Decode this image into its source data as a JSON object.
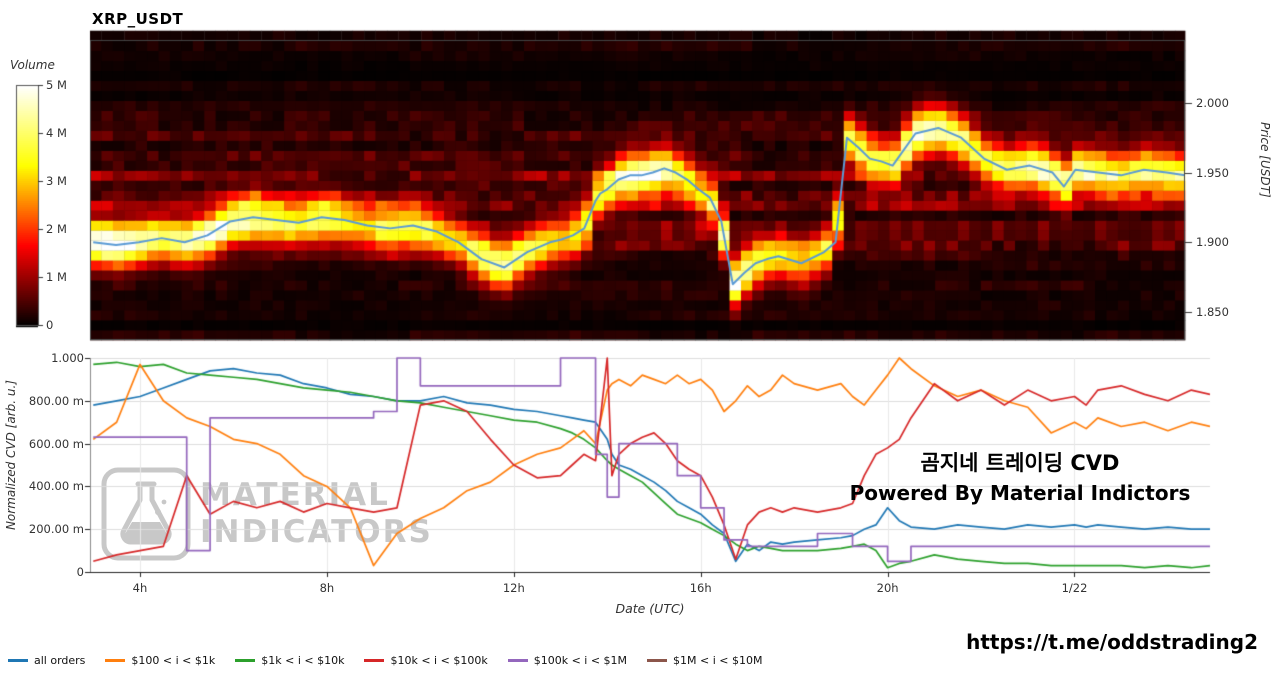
{
  "title": "XRP_USDT",
  "heatmap": {
    "colorbar": {
      "label": "Volume",
      "ticks": [
        {
          "label": "5 M",
          "m": 5
        },
        {
          "label": "4 M",
          "m": 4
        },
        {
          "label": "3 M",
          "m": 3
        },
        {
          "label": "2 M",
          "m": 2
        },
        {
          "label": "1 M",
          "m": 1
        },
        {
          "label": "0",
          "m": 0
        }
      ]
    },
    "price_axis": {
      "label": "Price [USDT]",
      "ticks": [
        {
          "label": "2.000",
          "p": 2.0
        },
        {
          "label": "1.950",
          "p": 1.95
        },
        {
          "label": "1.900",
          "p": 1.9
        },
        {
          "label": "1.850",
          "p": 1.85
        }
      ]
    }
  },
  "cvd_axes": {
    "y_label": "Normalized CVD [arb. u.]",
    "x_label": "Date (UTC)",
    "y_ticks": [
      {
        "label": "1.000",
        "v": 1.0
      },
      {
        "label": "800.00 m",
        "v": 0.8
      },
      {
        "label": "600.00 m",
        "v": 0.6
      },
      {
        "label": "400.00 m",
        "v": 0.4
      },
      {
        "label": "200.00 m",
        "v": 0.2
      },
      {
        "label": "0",
        "v": 0.0
      }
    ],
    "x_ticks": [
      {
        "label": "4h",
        "t": 4
      },
      {
        "label": "8h",
        "t": 8
      },
      {
        "label": "12h",
        "t": 12
      },
      {
        "label": "16h",
        "t": 16
      },
      {
        "label": "20h",
        "t": 20
      },
      {
        "label": "1/22",
        "t": 24
      }
    ]
  },
  "overlays": {
    "korean": "곰지네 트레이딩 CVD",
    "powered": "Powered By Material Indictors",
    "telegram": "https://t.me/oddstrading2",
    "watermark_line1": "MATERIAL",
    "watermark_line2": "INDICATORS"
  },
  "legend": [
    {
      "label": "all orders",
      "color": "#1f77b4"
    },
    {
      "label": "$100 < i < $1k",
      "color": "#ff7f0e"
    },
    {
      "label": "$1k < i < $10k",
      "color": "#2ca02c"
    },
    {
      "label": "$10k < i < $100k",
      "color": "#d62728"
    },
    {
      "label": "$100k < i < $1M",
      "color": "#9467bd"
    },
    {
      "label": "$1M < i < $10M",
      "color": "#8c564b"
    }
  ],
  "chart_data": [
    {
      "type": "heatmap",
      "title": "XRP_USDT",
      "xlabel": "Date (UTC)",
      "ylabel": "Price [USDT]",
      "volume_scale_M": [
        0,
        5
      ],
      "price_range": [
        1.83,
        2.045
      ],
      "band_sigma": 0.011,
      "price_line_color": "#5b9bd5",
      "x_hours": [
        3.0,
        3.5,
        4.0,
        4.5,
        5.0,
        5.5,
        6.0,
        6.5,
        7.0,
        7.5,
        8.0,
        8.5,
        9.0,
        9.5,
        10.0,
        10.5,
        11.0,
        11.5,
        12.0,
        12.5,
        13.0,
        13.25,
        13.5,
        13.75,
        14.0,
        14.1,
        14.25,
        14.5,
        14.75,
        15.0,
        15.25,
        15.5,
        15.75,
        16.0,
        16.25,
        16.5,
        16.75,
        17.0,
        17.25,
        17.5,
        17.75,
        18.0,
        18.5,
        19.0,
        19.25,
        19.5,
        19.75,
        20.0,
        20.25,
        20.5,
        21.0,
        21.5,
        22.0,
        22.5,
        23.0,
        23.5,
        24.0,
        24.25,
        24.5,
        25.0,
        25.5,
        26.0,
        26.5,
        26.9
      ],
      "price_line": [
        1.9,
        1.898,
        1.9,
        1.903,
        1.9,
        1.905,
        1.915,
        1.918,
        1.916,
        1.914,
        1.918,
        1.916,
        1.912,
        1.91,
        1.912,
        1.908,
        1.9,
        1.888,
        1.882,
        1.893,
        1.9,
        1.902,
        1.905,
        1.91,
        1.93,
        1.935,
        1.938,
        1.945,
        1.948,
        1.948,
        1.95,
        1.953,
        1.95,
        1.945,
        1.938,
        1.932,
        1.915,
        1.87,
        1.878,
        1.885,
        1.888,
        1.89,
        1.885,
        1.893,
        1.9,
        1.975,
        1.968,
        1.96,
        1.958,
        1.955,
        1.978,
        1.982,
        1.975,
        1.96,
        1.952,
        1.955,
        1.95,
        1.94,
        1.952,
        1.95,
        1.948,
        1.952,
        1.95,
        1.948
      ],
      "peak_volume_M": [
        4.5,
        4.8,
        4.2,
        3.5,
        3.8,
        4.5,
        4.2,
        4.0,
        3.5,
        3.2,
        3.8,
        3.0,
        2.8,
        3.4,
        3.6,
        3.0,
        2.6,
        3.8,
        4.4,
        3.6,
        2.8,
        2.6,
        3.0,
        3.4,
        3.6,
        3.2,
        3.4,
        4.0,
        4.4,
        4.2,
        4.6,
        4.0,
        3.4,
        3.0,
        2.6,
        3.0,
        3.6,
        4.8,
        4.4,
        3.8,
        3.2,
        3.0,
        2.8,
        3.0,
        3.2,
        3.6,
        3.8,
        3.4,
        3.2,
        3.6,
        4.6,
        4.2,
        3.8,
        3.2,
        3.6,
        4.0,
        4.2,
        3.8,
        4.0,
        3.6,
        3.2,
        3.4,
        3.6,
        3.2
      ]
    },
    {
      "type": "line",
      "ylabel": "Normalized CVD [arb. u.]",
      "xlabel": "Date (UTC)",
      "ylim": [
        0,
        1
      ],
      "x_hours": [
        3.0,
        3.5,
        4.0,
        4.5,
        5.0,
        5.5,
        6.0,
        6.5,
        7.0,
        7.5,
        8.0,
        8.5,
        9.0,
        9.5,
        10.0,
        10.5,
        11.0,
        11.5,
        12.0,
        12.5,
        13.0,
        13.25,
        13.5,
        13.75,
        14.0,
        14.1,
        14.25,
        14.5,
        14.75,
        15.0,
        15.25,
        15.5,
        15.75,
        16.0,
        16.25,
        16.5,
        16.75,
        17.0,
        17.25,
        17.5,
        17.75,
        18.0,
        18.5,
        19.0,
        19.25,
        19.5,
        19.75,
        20.0,
        20.25,
        20.5,
        21.0,
        21.5,
        22.0,
        22.5,
        23.0,
        23.5,
        24.0,
        24.25,
        24.5,
        25.0,
        25.5,
        26.0,
        26.5,
        26.9
      ],
      "series": [
        {
          "name": "all orders",
          "color": "#1f77b4",
          "values": [
            0.78,
            0.8,
            0.82,
            0.86,
            0.9,
            0.94,
            0.95,
            0.93,
            0.92,
            0.88,
            0.86,
            0.83,
            0.82,
            0.8,
            0.8,
            0.82,
            0.79,
            0.78,
            0.76,
            0.75,
            0.73,
            0.72,
            0.71,
            0.7,
            0.62,
            0.55,
            0.5,
            0.48,
            0.45,
            0.42,
            0.38,
            0.33,
            0.3,
            0.27,
            0.22,
            0.18,
            0.05,
            0.13,
            0.1,
            0.14,
            0.13,
            0.14,
            0.15,
            0.16,
            0.17,
            0.2,
            0.22,
            0.3,
            0.24,
            0.21,
            0.2,
            0.22,
            0.21,
            0.2,
            0.22,
            0.21,
            0.22,
            0.21,
            0.22,
            0.21,
            0.2,
            0.21,
            0.2,
            0.2
          ]
        },
        {
          "name": "$100 < i < $1k",
          "color": "#ff7f0e",
          "values": [
            0.62,
            0.7,
            0.97,
            0.8,
            0.72,
            0.68,
            0.62,
            0.6,
            0.55,
            0.45,
            0.4,
            0.3,
            0.03,
            0.18,
            0.25,
            0.3,
            0.38,
            0.42,
            0.5,
            0.55,
            0.58,
            0.62,
            0.66,
            0.6,
            0.85,
            0.88,
            0.9,
            0.87,
            0.92,
            0.9,
            0.88,
            0.92,
            0.88,
            0.9,
            0.85,
            0.75,
            0.8,
            0.87,
            0.82,
            0.85,
            0.92,
            0.88,
            0.85,
            0.88,
            0.82,
            0.78,
            0.85,
            0.92,
            1.0,
            0.95,
            0.87,
            0.82,
            0.85,
            0.8,
            0.77,
            0.65,
            0.7,
            0.67,
            0.72,
            0.68,
            0.7,
            0.66,
            0.7,
            0.68
          ]
        },
        {
          "name": "$1k < i < $10k",
          "color": "#2ca02c",
          "values": [
            0.97,
            0.98,
            0.96,
            0.97,
            0.93,
            0.92,
            0.91,
            0.9,
            0.88,
            0.86,
            0.85,
            0.84,
            0.82,
            0.8,
            0.79,
            0.77,
            0.75,
            0.73,
            0.71,
            0.7,
            0.67,
            0.65,
            0.62,
            0.58,
            0.52,
            0.5,
            0.48,
            0.45,
            0.42,
            0.37,
            0.32,
            0.27,
            0.25,
            0.23,
            0.2,
            0.17,
            0.13,
            0.1,
            0.12,
            0.11,
            0.1,
            0.1,
            0.1,
            0.11,
            0.12,
            0.13,
            0.1,
            0.02,
            0.04,
            0.05,
            0.08,
            0.06,
            0.05,
            0.04,
            0.04,
            0.03,
            0.03,
            0.03,
            0.03,
            0.03,
            0.02,
            0.03,
            0.02,
            0.03
          ]
        },
        {
          "name": "$10k < i < $100k",
          "color": "#d62728",
          "values": [
            0.05,
            0.08,
            0.1,
            0.12,
            0.45,
            0.27,
            0.33,
            0.3,
            0.33,
            0.28,
            0.32,
            0.3,
            0.28,
            0.3,
            0.78,
            0.8,
            0.75,
            0.62,
            0.5,
            0.44,
            0.45,
            0.5,
            0.55,
            0.52,
            1.0,
            0.45,
            0.55,
            0.6,
            0.63,
            0.65,
            0.6,
            0.52,
            0.48,
            0.45,
            0.35,
            0.22,
            0.06,
            0.22,
            0.28,
            0.3,
            0.28,
            0.3,
            0.28,
            0.3,
            0.32,
            0.45,
            0.55,
            0.58,
            0.62,
            0.72,
            0.88,
            0.8,
            0.85,
            0.78,
            0.85,
            0.8,
            0.82,
            0.78,
            0.85,
            0.87,
            0.83,
            0.8,
            0.85,
            0.83
          ]
        },
        {
          "name": "$100k < i < $1M",
          "color": "#9467bd",
          "step": true,
          "values": [
            0.63,
            0.63,
            0.63,
            0.63,
            0.1,
            0.72,
            0.72,
            0.72,
            0.72,
            0.72,
            0.72,
            0.72,
            0.75,
            1.0,
            0.87,
            0.87,
            0.87,
            0.87,
            0.87,
            0.87,
            1.0,
            1.0,
            1.0,
            0.55,
            0.35,
            0.35,
            0.6,
            0.6,
            0.6,
            0.6,
            0.6,
            0.45,
            0.45,
            0.3,
            0.3,
            0.15,
            0.15,
            0.12,
            0.12,
            0.12,
            0.12,
            0.12,
            0.18,
            0.18,
            0.12,
            0.12,
            0.12,
            0.05,
            0.05,
            0.12,
            0.12,
            0.12,
            0.12,
            0.12,
            0.12,
            0.12,
            0.12,
            0.12,
            0.12,
            0.12,
            0.12,
            0.12,
            0.12,
            0.12
          ]
        },
        {
          "name": "$1M < i < $10M",
          "color": "#8c564b",
          "values": []
        }
      ]
    }
  ]
}
